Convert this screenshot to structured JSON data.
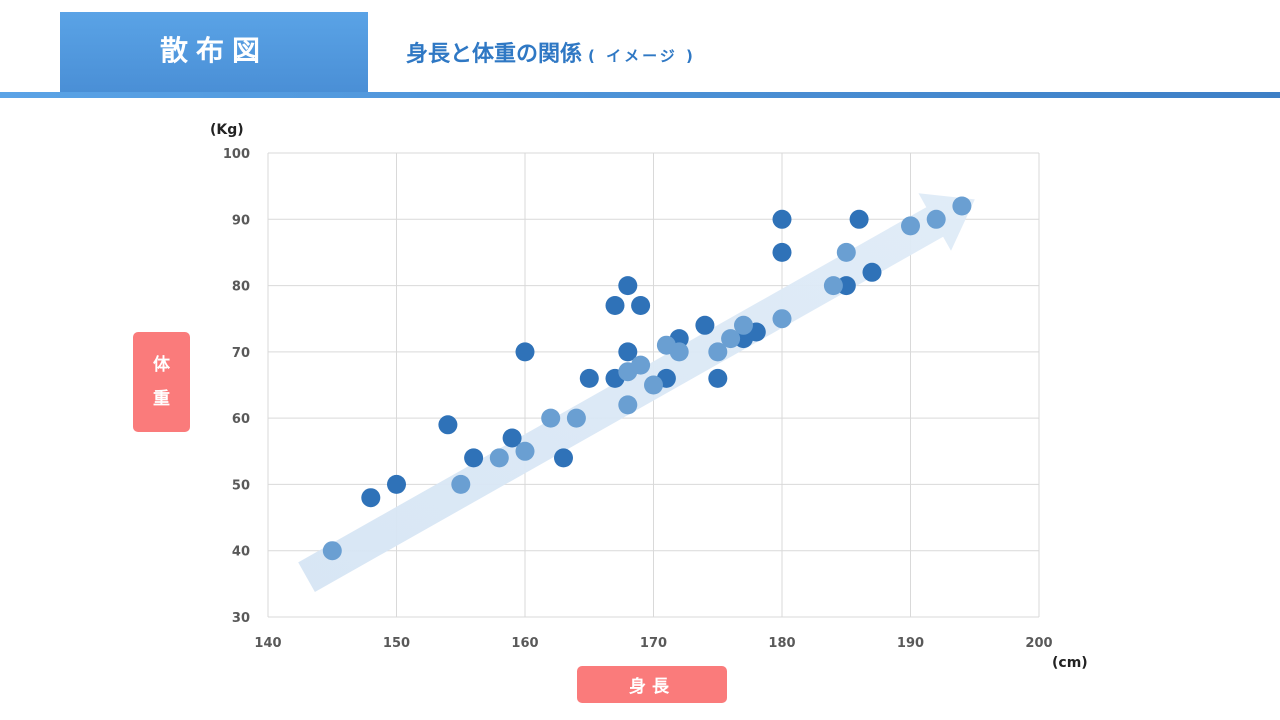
{
  "header": {
    "tab_label": "散布図",
    "title": "身長と体重の関係",
    "subtitle": "( イメージ )"
  },
  "colors": {
    "accent": "#4a8fd6",
    "point_dark": "#2f72b8",
    "point_light": "#6a9fd2",
    "label_box": "#fa7b7b",
    "trend_arrow": "#dce9f6"
  },
  "chart_data": {
    "type": "scatter",
    "title": "",
    "xlabel": "身長",
    "ylabel_chars": [
      "体",
      "重"
    ],
    "x_unit": "(cm)",
    "y_unit": "(Kg)",
    "xlim": [
      140,
      200
    ],
    "ylim": [
      30,
      100
    ],
    "x_ticks": [
      "140",
      "150",
      "160",
      "170",
      "180",
      "190",
      "200"
    ],
    "y_ticks": [
      "30",
      "40",
      "50",
      "60",
      "70",
      "80",
      "90",
      "100"
    ],
    "grid": true,
    "trend_arrow": {
      "from": [
        143,
        36
      ],
      "to": [
        195,
        93
      ]
    },
    "series": [
      {
        "points": [
          [
            148,
            48
          ],
          [
            150,
            50
          ],
          [
            154,
            59
          ],
          [
            156,
            54
          ],
          [
            159,
            57
          ],
          [
            160,
            70
          ],
          [
            163,
            54
          ],
          [
            165,
            66
          ],
          [
            167,
            77
          ],
          [
            167,
            66
          ],
          [
            168,
            80
          ],
          [
            168,
            70
          ],
          [
            169,
            77
          ],
          [
            171,
            66
          ],
          [
            172,
            72
          ],
          [
            174,
            74
          ],
          [
            175,
            66
          ],
          [
            177,
            72
          ],
          [
            178,
            73
          ],
          [
            180,
            90
          ],
          [
            180,
            85
          ],
          [
            185,
            80
          ],
          [
            186,
            90
          ],
          [
            187,
            82
          ]
        ]
      },
      {
        "points": [
          [
            145,
            40
          ],
          [
            155,
            50
          ],
          [
            158,
            54
          ],
          [
            160,
            55
          ],
          [
            162,
            60
          ],
          [
            164,
            60
          ],
          [
            168,
            62
          ],
          [
            168,
            67
          ],
          [
            169,
            68
          ],
          [
            170,
            65
          ],
          [
            171,
            71
          ],
          [
            172,
            70
          ],
          [
            175,
            70
          ],
          [
            176,
            72
          ],
          [
            177,
            74
          ],
          [
            180,
            75
          ],
          [
            184,
            80
          ],
          [
            185,
            85
          ],
          [
            190,
            89
          ],
          [
            192,
            90
          ],
          [
            194,
            92
          ]
        ]
      }
    ]
  }
}
